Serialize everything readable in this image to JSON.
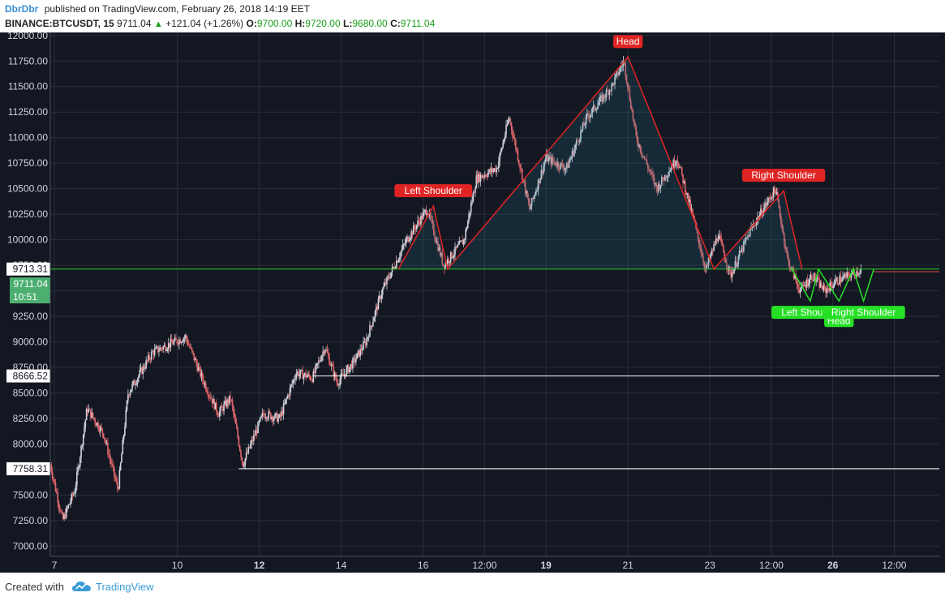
{
  "header": {
    "author": "DbrDbr",
    "published": "published on TradingView.com, February 26, 2018 14:19 EET",
    "symbol": "BINANCE:BTCUSDT, 15",
    "last": "9711.04",
    "change": "+121.04 (+1.26%)",
    "o_label": "O:",
    "o_value": "9700.00",
    "h_label": "H:",
    "h_value": "9720.00",
    "l_label": "L:",
    "l_value": "9680.00",
    "c_label": "C:",
    "c_value": "9711.04"
  },
  "footer": {
    "created_with": "Created with",
    "brand": "TradingView"
  },
  "colors": {
    "background": "#131722",
    "grid": "#2a2e39",
    "candle_up": "#d1d4dc",
    "candle_down": "#e0676b",
    "pattern_red": "#e02424",
    "pattern_green": "#26e026",
    "support_line": "#ffffff",
    "current_line": "#26d826"
  },
  "chart_data": {
    "type": "candlestick",
    "title": "",
    "xlabel": "",
    "ylabel": "",
    "ylim": [
      6900,
      12030
    ],
    "y_ticks": [
      7000,
      7250,
      7500,
      7750,
      8000,
      8250,
      8500,
      8750,
      9000,
      9250,
      9500,
      9750,
      10000,
      10250,
      10500,
      10750,
      11000,
      11250,
      11500,
      11750,
      12000
    ],
    "y_tick_labels": [
      "7000.00",
      "7250.00",
      "7500.00",
      "7750.00",
      "8000.00",
      "8250.00",
      "8500.00",
      "8750.00",
      "9000.00",
      "9250.00",
      "9500.00",
      "9750.00",
      "10000.00",
      "10250.00",
      "10500.00",
      "10750.00",
      "11000.00",
      "11250.00",
      "11500.00",
      "11750.00",
      "12000.00"
    ],
    "x_range": [
      6.9,
      28.6
    ],
    "x_ticks": [
      {
        "t": 7.0,
        "label": "7",
        "bold": false
      },
      {
        "t": 10.0,
        "label": "10",
        "bold": false
      },
      {
        "t": 12.0,
        "label": "12",
        "bold": true
      },
      {
        "t": 14.0,
        "label": "14",
        "bold": false
      },
      {
        "t": 16.0,
        "label": "16",
        "bold": false
      },
      {
        "t": 17.5,
        "label": "12:00",
        "bold": false
      },
      {
        "t": 19.0,
        "label": "19",
        "bold": true
      },
      {
        "t": 21.0,
        "label": "21",
        "bold": false
      },
      {
        "t": 23.0,
        "label": "23",
        "bold": false
      },
      {
        "t": 24.5,
        "label": "12:00",
        "bold": false
      },
      {
        "t": 26.0,
        "label": "26",
        "bold": true
      },
      {
        "t": 27.5,
        "label": "12:00",
        "bold": false
      }
    ],
    "price_path": [
      [
        6.9,
        7800
      ],
      [
        7.2,
        7250
      ],
      [
        7.5,
        7550
      ],
      [
        7.8,
        8350
      ],
      [
        8.2,
        8100
      ],
      [
        8.55,
        7550
      ],
      [
        8.8,
        8500
      ],
      [
        9.4,
        8900
      ],
      [
        10.2,
        9050
      ],
      [
        10.6,
        8650
      ],
      [
        11.0,
        8300
      ],
      [
        11.3,
        8450
      ],
      [
        11.6,
        7800
      ],
      [
        12.1,
        8300
      ],
      [
        12.5,
        8250
      ],
      [
        12.9,
        8700
      ],
      [
        13.3,
        8650
      ],
      [
        13.6,
        8950
      ],
      [
        13.9,
        8600
      ],
      [
        14.3,
        8800
      ],
      [
        14.6,
        9000
      ],
      [
        15.0,
        9500
      ],
      [
        15.3,
        9750
      ],
      [
        15.6,
        10000
      ],
      [
        16.1,
        10300
      ],
      [
        16.5,
        9750
      ],
      [
        17.0,
        10000
      ],
      [
        17.3,
        10600
      ],
      [
        17.8,
        10700
      ],
      [
        18.1,
        11200
      ],
      [
        18.6,
        10300
      ],
      [
        19.0,
        10800
      ],
      [
        19.5,
        10700
      ],
      [
        20.0,
        11200
      ],
      [
        20.6,
        11500
      ],
      [
        20.9,
        11750
      ],
      [
        21.2,
        11000
      ],
      [
        21.7,
        10500
      ],
      [
        22.2,
        10800
      ],
      [
        22.6,
        10200
      ],
      [
        22.9,
        9700
      ],
      [
        23.2,
        10050
      ],
      [
        23.5,
        9650
      ],
      [
        24.0,
        10100
      ],
      [
        24.3,
        10300
      ],
      [
        24.6,
        10500
      ],
      [
        24.9,
        9800
      ],
      [
        25.2,
        9500
      ],
      [
        25.5,
        9650
      ],
      [
        25.8,
        9500
      ],
      [
        26.1,
        9600
      ],
      [
        26.4,
        9650
      ],
      [
        26.7,
        9711
      ]
    ],
    "horizontal_levels": [
      {
        "price": 9713.31,
        "label": "9713.31",
        "color": "#26d826",
        "label_style": "white",
        "from": 6.9
      },
      {
        "price": 8666.52,
        "label": "8666.52",
        "color": "#ffffff",
        "label_style": "white",
        "from": 13.3
      },
      {
        "price": 7758.31,
        "label": "7758.31",
        "color": "#ffffff",
        "label_style": "white",
        "from": 11.5
      }
    ],
    "current_price": {
      "price": 9711.04,
      "label": "9711.04",
      "countdown": "10:51"
    },
    "patterns": [
      {
        "name": "Head and Shoulders",
        "color": "#e02424",
        "points": [
          [
            15.4,
            9713
          ],
          [
            16.25,
            10330
          ],
          [
            16.6,
            9713
          ],
          [
            21.0,
            11790
          ],
          [
            23.1,
            9713
          ],
          [
            24.8,
            10480
          ],
          [
            25.25,
            9713
          ]
        ],
        "labels": [
          {
            "text": "Left Shoulder",
            "t": 16.25,
            "p": 10330
          },
          {
            "text": "Head",
            "t": 21.0,
            "p": 11790
          },
          {
            "text": "Right Shoulder",
            "t": 24.8,
            "p": 10480
          }
        ]
      },
      {
        "name": "Inverse Head and Shoulders",
        "color": "#26e026",
        "points": [
          [
            25.0,
            9713
          ],
          [
            25.45,
            9400
          ],
          [
            25.65,
            9713
          ],
          [
            26.15,
            9400
          ],
          [
            26.5,
            9713
          ],
          [
            26.75,
            9400
          ],
          [
            27.0,
            9713
          ]
        ],
        "labels": [
          {
            "text": "Left Shoulder",
            "t": 25.45,
            "p": 9400
          },
          {
            "text": "Head",
            "t": 26.15,
            "p": 9320
          },
          {
            "text": "Right Shoulder",
            "t": 26.75,
            "p": 9400
          }
        ]
      }
    ]
  }
}
